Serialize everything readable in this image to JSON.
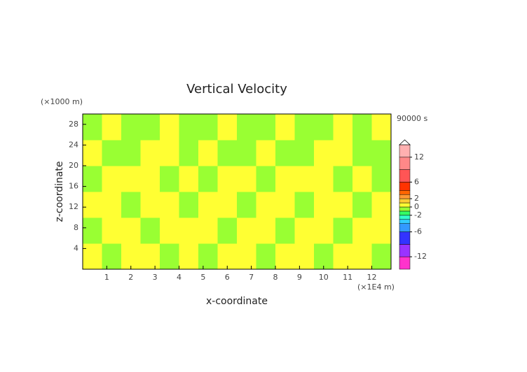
{
  "chart_data": {
    "type": "contour",
    "title": "Vertical Velocity",
    "y_unit": "(×1000 m)",
    "x_unit": "(×1E4 m)",
    "time_label": "90000 s",
    "xlabel": "x-coordinate",
    "ylabel": "z-coordinate",
    "xlim": [
      0,
      12.8
    ],
    "ylim": [
      0,
      30
    ],
    "xticks": [
      1,
      2,
      3,
      4,
      5,
      6,
      7,
      8,
      9,
      10,
      11,
      12
    ],
    "yticks": [
      4,
      8,
      12,
      16,
      20,
      24,
      28
    ],
    "x": [
      0.4,
      1.2,
      2.0,
      2.8,
      3.6,
      4.4,
      5.2,
      6.0,
      6.8,
      7.6,
      8.4,
      9.2,
      10.0,
      10.8,
      11.6,
      12.4
    ],
    "y": [
      2.5,
      7.5,
      12.5,
      17.5,
      22.5,
      27.5
    ],
    "z": [
      [
        0.5,
        -0.5,
        0.5,
        0.5,
        -0.5,
        0.5,
        -0.5,
        0.5,
        0.5,
        -0.5,
        0.5,
        0.5,
        -0.5,
        0.5,
        0.5,
        -0.5
      ],
      [
        -0.5,
        0.5,
        0.5,
        -0.5,
        0.5,
        0.5,
        0.5,
        -0.5,
        0.5,
        0.5,
        -0.5,
        0.5,
        0.5,
        -0.5,
        0.5,
        0.5
      ],
      [
        0.5,
        0.5,
        -0.5,
        0.5,
        0.5,
        -0.5,
        0.5,
        0.5,
        -0.5,
        0.5,
        0.5,
        -0.5,
        0.5,
        0.5,
        -0.5,
        0.5
      ],
      [
        -0.5,
        0.5,
        0.5,
        0.5,
        -0.5,
        0.5,
        -0.5,
        0.5,
        0.5,
        -0.5,
        0.5,
        0.5,
        0.5,
        -0.5,
        0.5,
        -0.5
      ],
      [
        0.5,
        -0.5,
        -0.5,
        0.5,
        0.5,
        -0.5,
        0.5,
        -0.5,
        -0.5,
        0.5,
        -0.5,
        -0.5,
        0.5,
        0.5,
        -0.5,
        -0.5
      ],
      [
        -0.5,
        0.5,
        -0.5,
        -0.5,
        0.5,
        -0.5,
        -0.5,
        0.5,
        -0.5,
        -0.5,
        0.5,
        -0.5,
        -0.5,
        0.5,
        -0.5,
        0.5
      ]
    ],
    "colorbar": {
      "lim": [
        -15,
        15
      ],
      "ticks": [
        12,
        6,
        2,
        0,
        -2,
        -6,
        -12
      ],
      "bounds": [
        -15,
        -12,
        -9,
        -6,
        -4,
        -3,
        -2,
        -1,
        0,
        1,
        2,
        3,
        4,
        6,
        9,
        12,
        15
      ],
      "colors": [
        "#ff33cc",
        "#9933ff",
        "#3333ff",
        "#3399ff",
        "#33ccff",
        "#33ffcc",
        "#33ff66",
        "#99ff33",
        "#ffff33",
        "#ffcc33",
        "#ff9933",
        "#ff6600",
        "#ff3300",
        "#ff5555",
        "#ff8888",
        "#ffb0b0"
      ]
    }
  }
}
